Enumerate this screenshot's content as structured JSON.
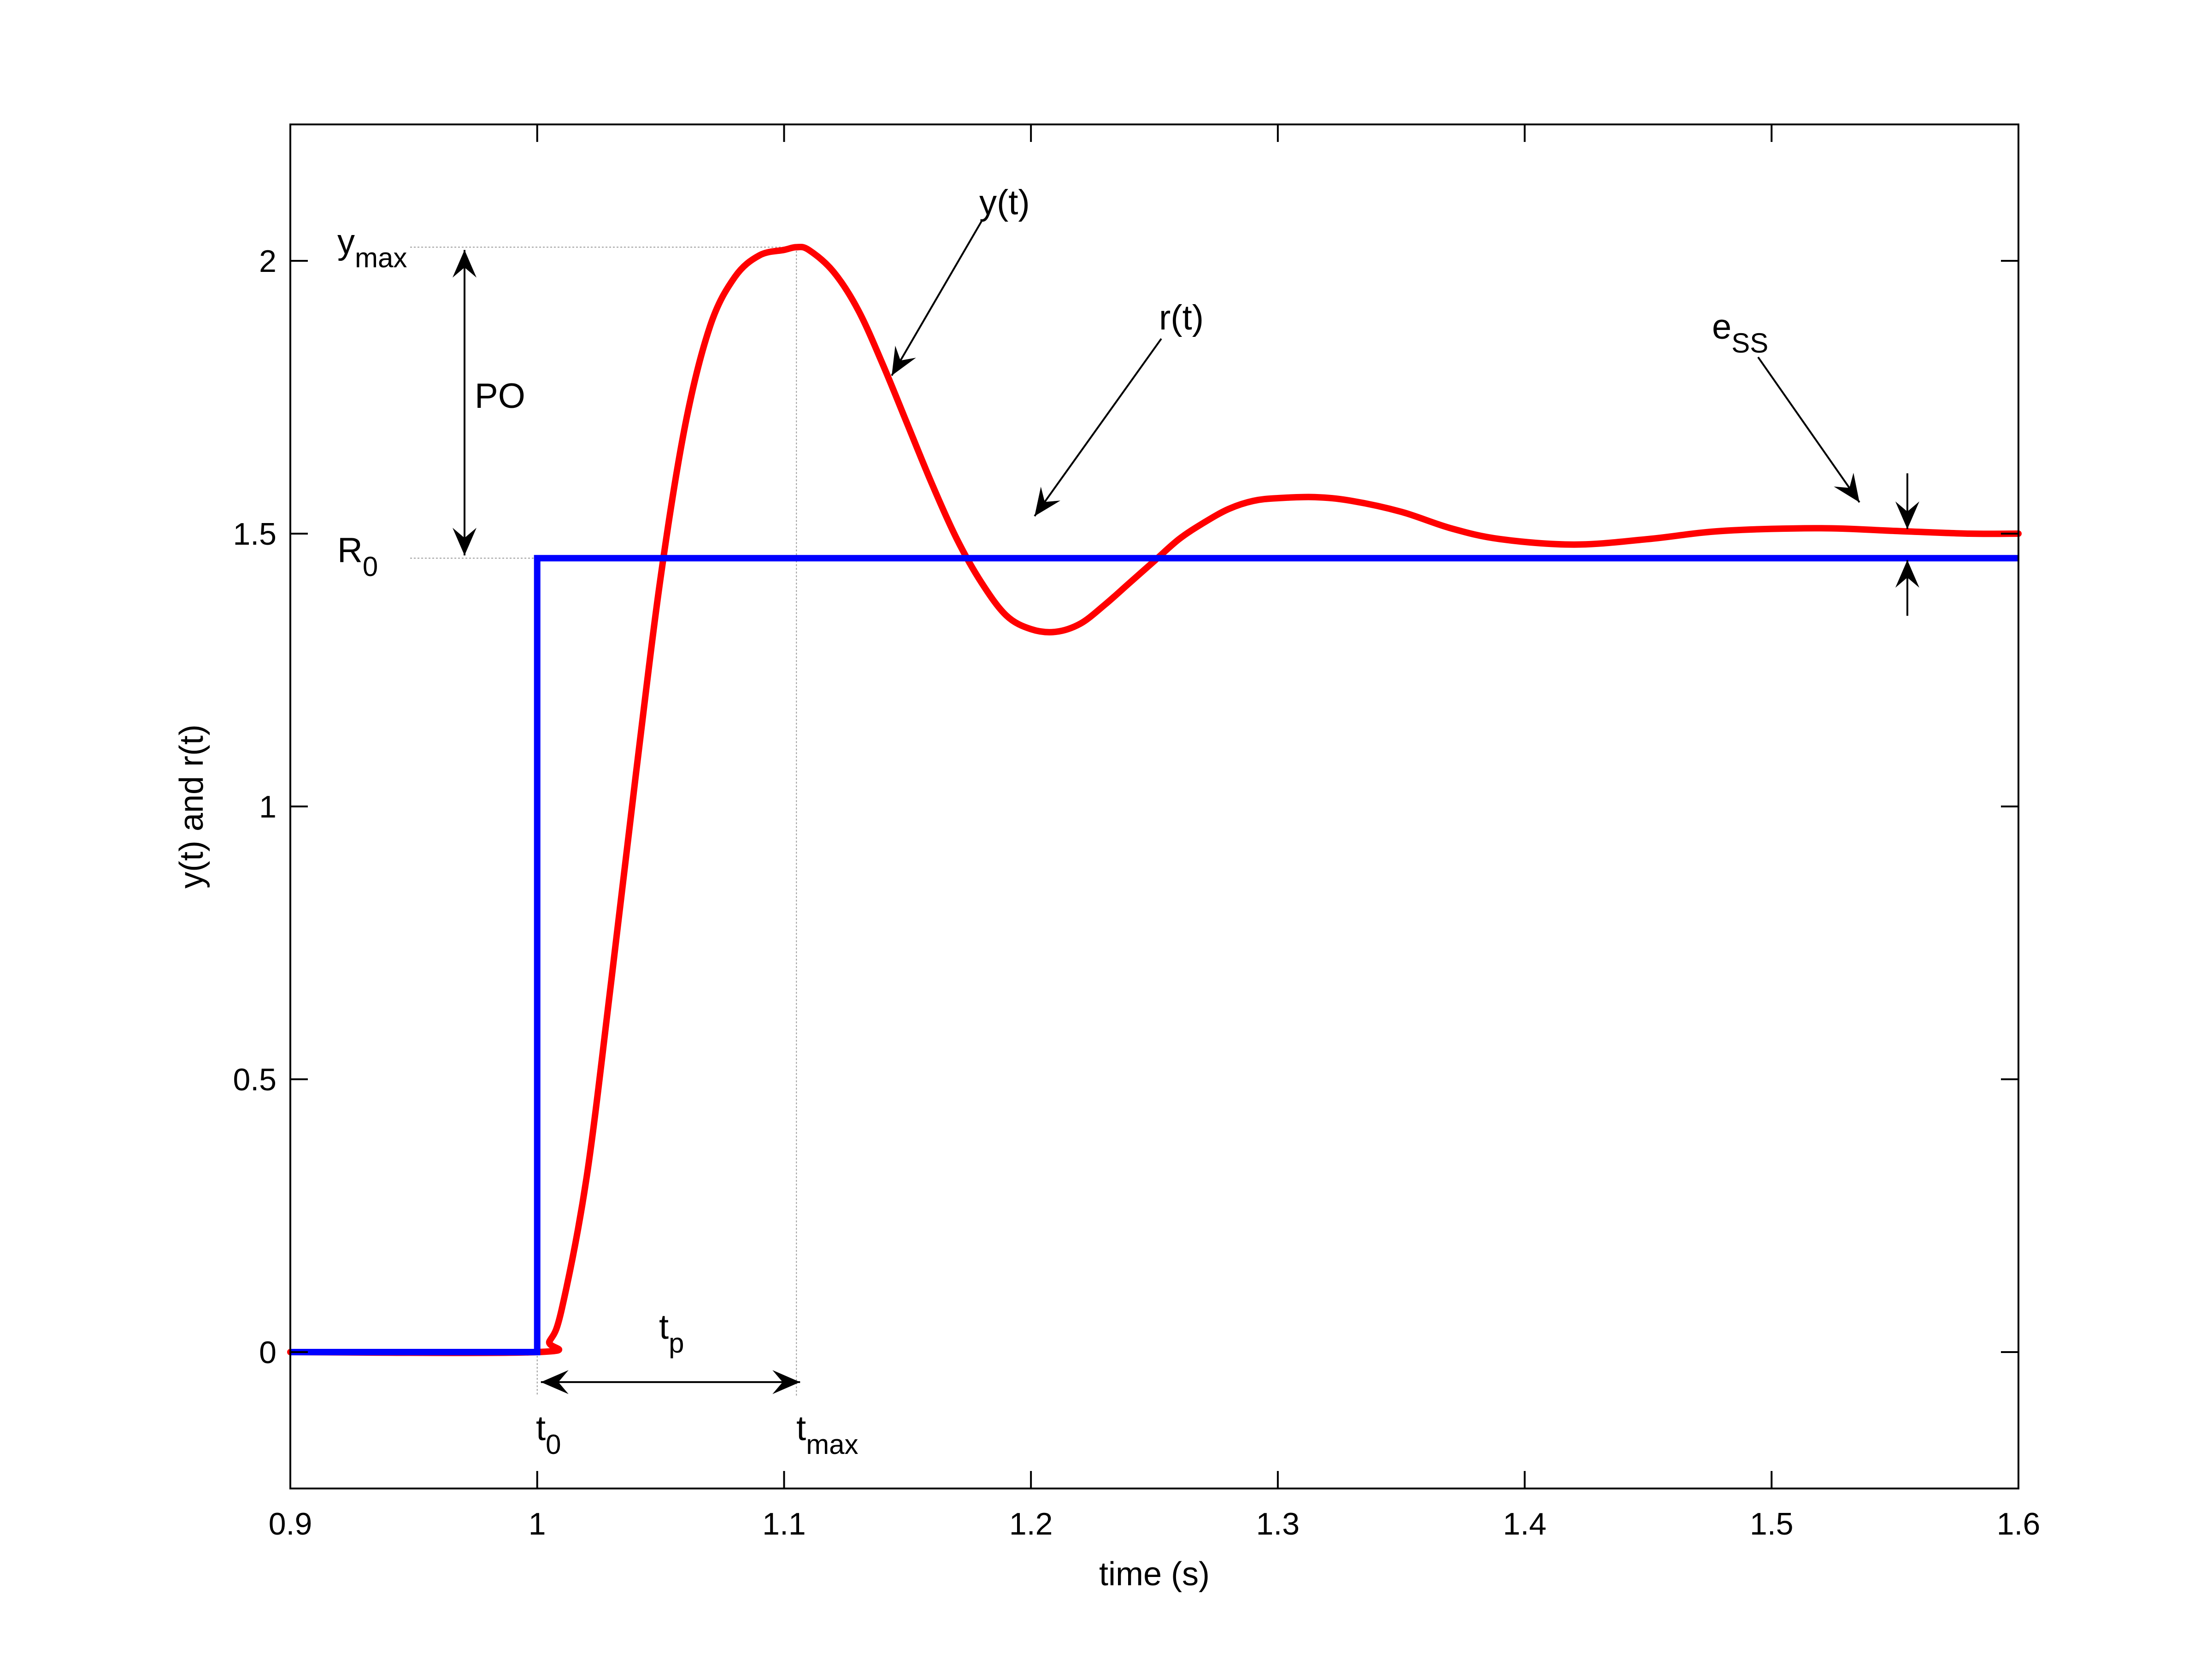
{
  "chart_data": {
    "type": "line",
    "title": "",
    "xlabel": "time (s)",
    "ylabel": "y(t) and r(t)",
    "xlim": [
      0.9,
      1.6
    ],
    "ylim": [
      -0.25,
      2.25
    ],
    "xticks": [
      0.9,
      1.0,
      1.1,
      1.2,
      1.3,
      1.4,
      1.5,
      1.6
    ],
    "xtick_labels": [
      "0.9",
      "1",
      "1.1",
      "1.2",
      "1.3",
      "1.4",
      "1.5",
      "1.6"
    ],
    "yticks": [
      0,
      0.5,
      1,
      1.5,
      2
    ],
    "ytick_labels": [
      "0",
      "0.5",
      "1",
      "1.5",
      "2"
    ],
    "grid": false,
    "series": [
      {
        "key": "y",
        "color": "#ff0000",
        "x": [
          0.9,
          1.0,
          1.005,
          1.01,
          1.02,
          1.03,
          1.04,
          1.05,
          1.06,
          1.07,
          1.08,
          1.09,
          1.1,
          1.105,
          1.11,
          1.12,
          1.13,
          1.14,
          1.15,
          1.16,
          1.17,
          1.18,
          1.19,
          1.2,
          1.21,
          1.22,
          1.23,
          1.24,
          1.25,
          1.26,
          1.27,
          1.28,
          1.29,
          1.3,
          1.315,
          1.33,
          1.35,
          1.37,
          1.39,
          1.42,
          1.45,
          1.48,
          1.52,
          1.55,
          1.58,
          1.6
        ],
        "y": [
          0,
          0,
          0.02,
          0.08,
          0.32,
          0.68,
          1.06,
          1.42,
          1.7,
          1.88,
          1.97,
          2.01,
          2.02,
          2.025,
          2.02,
          1.98,
          1.91,
          1.81,
          1.7,
          1.59,
          1.49,
          1.41,
          1.35,
          1.325,
          1.32,
          1.335,
          1.37,
          1.41,
          1.45,
          1.49,
          1.52,
          1.545,
          1.56,
          1.565,
          1.567,
          1.56,
          1.54,
          1.51,
          1.49,
          1.48,
          1.49,
          1.505,
          1.51,
          1.505,
          1.5,
          1.5
        ]
      },
      {
        "key": "r",
        "color": "#0000ff",
        "x": [
          0.9,
          1.0,
          1.0,
          1.6
        ],
        "y": [
          0,
          0,
          1.455,
          1.455
        ]
      }
    ],
    "annotations": {
      "y_label": "y(t)",
      "r_label": "r(t)",
      "ess_label": "e",
      "ess_sub": "SS",
      "po_label": "PO",
      "ymax_label": "y",
      "ymax_sub": "max",
      "r0_label": "R",
      "r0_sub": "0",
      "tp_label": "t",
      "tp_sub": "p",
      "t0_label": "t",
      "t0_sub": "0",
      "tmax_label": "t",
      "tmax_sub": "max",
      "ymax_value": 2.025,
      "r0_value": 1.455,
      "t0_value": 1.0,
      "tmax_value": 1.105,
      "ess_time": 1.555
    }
  }
}
